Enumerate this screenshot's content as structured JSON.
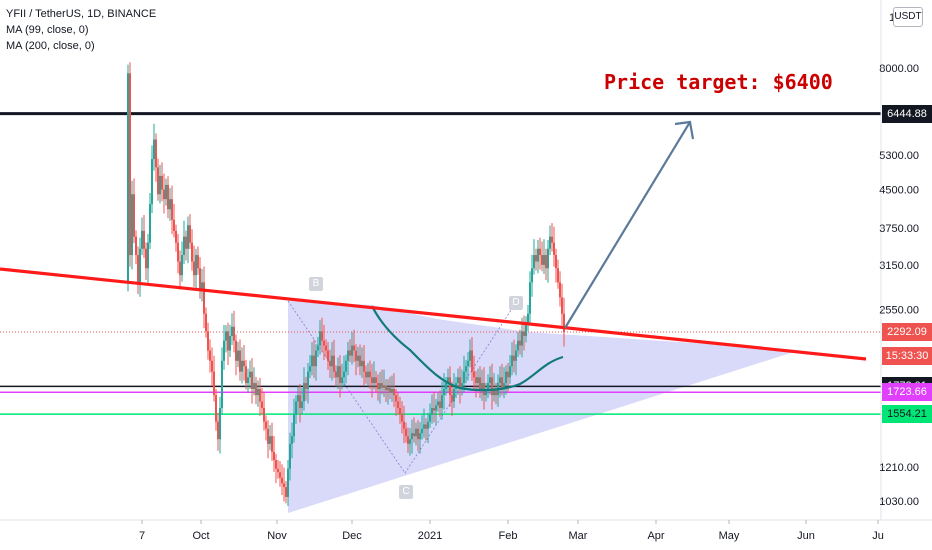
{
  "legend": {
    "symbol": "YFII / TetherUS, 1D, BINANCE",
    "ma99": "MA (99, close, 0)",
    "ma200": "MA (200, close, 0)"
  },
  "currency_button": "USDT",
  "annotation": {
    "target_text": "Price target: $6400",
    "pattern_point_b": "B",
    "pattern_point_c": "C",
    "pattern_point_d": "D"
  },
  "price_tags": [
    {
      "name": "resistance-6444-tag",
      "text": "6444.88",
      "bg": "#131722",
      "fg": "#ffffff",
      "value": 6444.88
    },
    {
      "name": "last-price-tag",
      "text": "2292.09",
      "bg": "#ef5350",
      "fg": "#ffffff",
      "value": 2292.09
    },
    {
      "name": "countdown-tag",
      "text": "15:33:30",
      "bg": "#ef5350",
      "fg": "#ffffff",
      "value": 2050
    },
    {
      "name": "support-1772-tag",
      "text": "1772.01",
      "bg": "#131722",
      "fg": "#ffffff",
      "value": 1772.01
    },
    {
      "name": "support-1723-tag",
      "text": "1723.66",
      "bg": "#e040fb",
      "fg": "#ffffff",
      "value": 1723.66
    },
    {
      "name": "support-1554-tag",
      "text": "1554.21",
      "bg": "#00e676",
      "fg": "#131722",
      "value": 1554.21
    }
  ],
  "colors": {
    "up": "#26a69a",
    "down": "#ef5350",
    "trendline": "#ff1a1a",
    "triangle_fill": "#b9b9f5",
    "arrow": "#5b7a99",
    "ma_curve": "#117a7a"
  },
  "chart_data": {
    "type": "candlestick",
    "y_scale": "log",
    "y_ticks": [
      8000,
      6444.88,
      5300,
      4500,
      3750,
      3150,
      2550,
      2292.09,
      1772.01,
      1723.66,
      1554.21,
      1210,
      1030
    ],
    "y_tick_labels": [
      "8000.00",
      "5300.00",
      "4500.00",
      "3750.00",
      "3150.00",
      "2550.00",
      "1210.00",
      "1030.00"
    ],
    "y_top_partial_label": "1",
    "x_tick_labels": [
      "7",
      "Oct",
      "Nov",
      "Dec",
      "2021",
      "Feb",
      "Mar",
      "Apr",
      "May",
      "Jun",
      "Ju"
    ],
    "horizontal_lines": [
      {
        "value": 6444.88,
        "color": "#131722"
      },
      {
        "value": 1772.01,
        "color": "#131722"
      },
      {
        "value": 1723.66,
        "color": "#e040fb"
      },
      {
        "value": 1554.21,
        "color": "#00e676"
      },
      {
        "value": 2292.09,
        "color": "#ef5350",
        "style": "dotted"
      }
    ],
    "price_target": 6400,
    "last_price": 2292.09
  }
}
